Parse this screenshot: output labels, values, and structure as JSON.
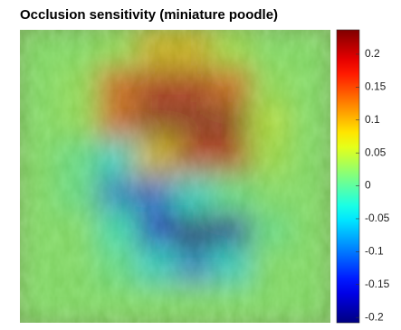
{
  "chart_data": {
    "type": "heatmap",
    "title": "Occlusion sensitivity (miniature poodle)",
    "colormap": "jet",
    "values": [
      [
        0.02,
        0.02,
        0.03,
        0.1,
        0.1,
        0.04,
        0.02,
        0.02
      ],
      [
        0.02,
        0.03,
        0.15,
        0.2,
        0.2,
        0.15,
        0.03,
        0.02
      ],
      [
        0.02,
        0.03,
        0.15,
        0.22,
        0.22,
        0.22,
        0.05,
        0.02
      ],
      [
        0.02,
        0.0,
        -0.05,
        0.1,
        0.2,
        0.2,
        0.04,
        0.02
      ],
      [
        0.02,
        0.0,
        -0.1,
        -0.12,
        -0.05,
        0.0,
        0.02,
        0.02
      ],
      [
        0.02,
        0.02,
        -0.03,
        -0.15,
        -0.2,
        -0.18,
        0.0,
        0.02
      ],
      [
        0.02,
        0.02,
        0.0,
        -0.05,
        -0.1,
        -0.05,
        0.02,
        0.02
      ],
      [
        0.02,
        0.02,
        0.02,
        0.02,
        0.02,
        0.02,
        0.02,
        0.02
      ]
    ],
    "clim": [
      -0.208,
      0.237
    ],
    "cticks": [
      0.2,
      0.15,
      0.1,
      0.05,
      0,
      -0.05,
      -0.1,
      -0.15,
      -0.2
    ]
  }
}
